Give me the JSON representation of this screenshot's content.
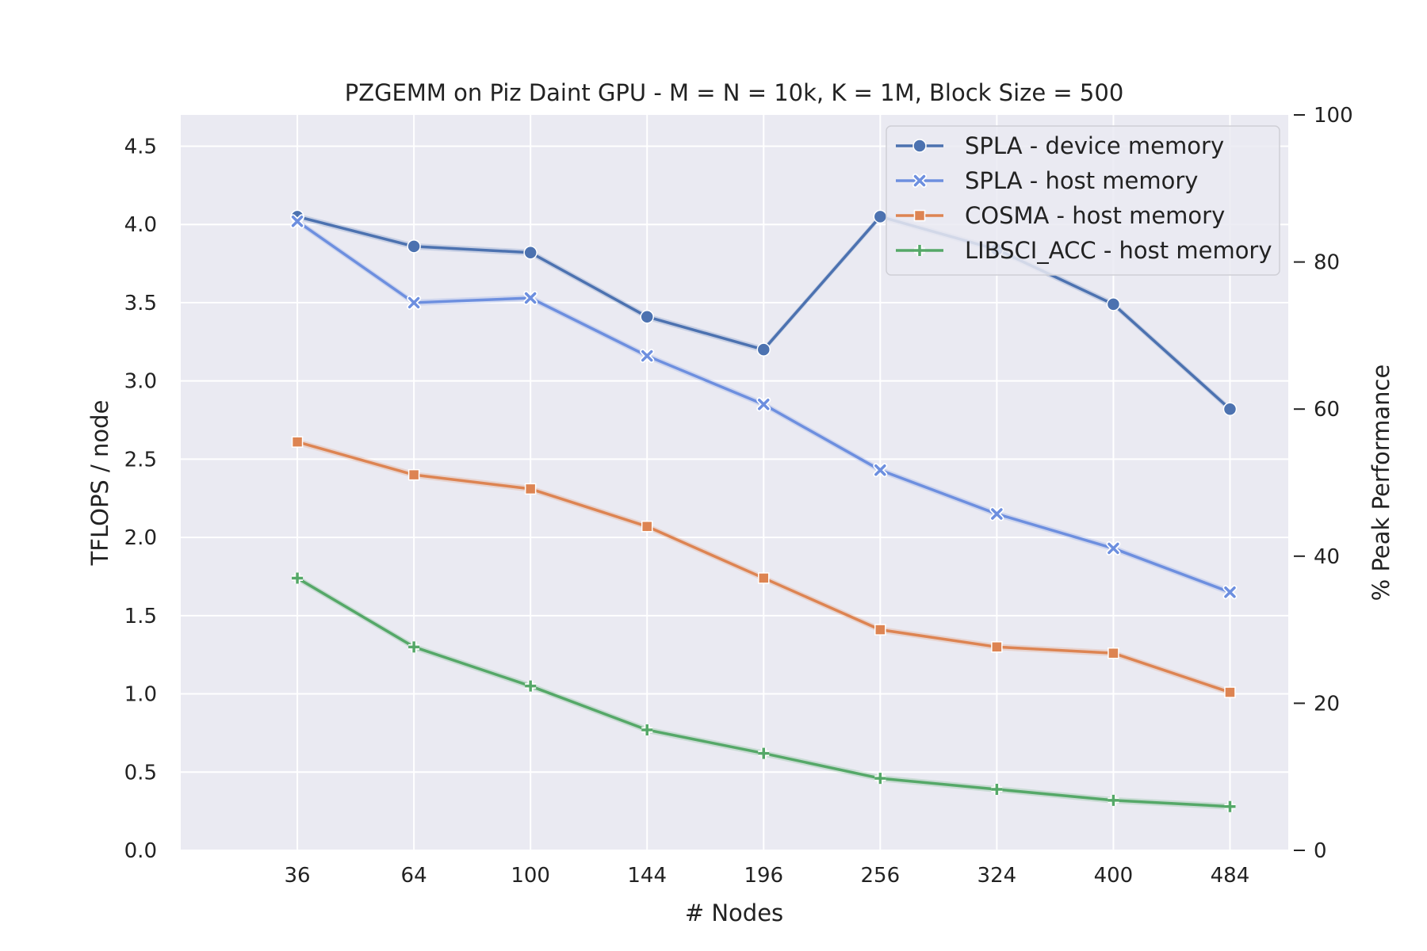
{
  "chart_data": {
    "type": "line",
    "title": "PZGEMM on Piz Daint GPU - M = N = 10k, K = 1M, Block Size = 500",
    "xlabel": "# Nodes",
    "ylabel": "TFLOPS / node",
    "y2label": "% Peak Performance",
    "x": [
      36,
      64,
      100,
      144,
      196,
      256,
      324,
      400,
      484
    ],
    "x_tick_labels": [
      "36",
      "64",
      "100",
      "144",
      "196",
      "256",
      "324",
      "400",
      "484"
    ],
    "x_scale": "sqrt",
    "xlim": [
      16,
      529
    ],
    "ylim": [
      0,
      4.7
    ],
    "y_ticks": [
      0.0,
      0.5,
      1.0,
      1.5,
      2.0,
      2.5,
      3.0,
      3.5,
      4.0,
      4.5
    ],
    "y_tick_labels": [
      "0.0",
      "0.5",
      "1.0",
      "1.5",
      "2.0",
      "2.5",
      "3.0",
      "3.5",
      "4.0",
      "4.5"
    ],
    "y2lim": [
      0,
      100
    ],
    "y2_ticks": [
      0,
      20,
      40,
      60,
      80,
      100
    ],
    "y2_tick_labels": [
      "0",
      "20",
      "40",
      "60",
      "80",
      "100"
    ],
    "grid": true,
    "legend_position": "top-right",
    "background": "#eaeaf2",
    "series": [
      {
        "name": "SPLA - device memory",
        "color": "#4c72b0",
        "marker": "circle",
        "values": [
          4.05,
          3.86,
          3.82,
          3.41,
          3.2,
          4.05,
          3.84,
          3.49,
          2.82
        ]
      },
      {
        "name": "SPLA - host memory",
        "color": "#6d8fdf",
        "marker": "x",
        "values": [
          4.02,
          3.5,
          3.53,
          3.16,
          2.85,
          2.43,
          2.15,
          1.93,
          1.65
        ]
      },
      {
        "name": "COSMA - host memory",
        "color": "#dd8452",
        "marker": "square",
        "values": [
          2.61,
          2.4,
          2.31,
          2.07,
          1.74,
          1.41,
          1.3,
          1.26,
          1.01
        ]
      },
      {
        "name": "LIBSCI_ACC - host memory",
        "color": "#55a868",
        "marker": "plus",
        "values": [
          1.74,
          1.3,
          1.05,
          0.77,
          0.62,
          0.46,
          0.39,
          0.32,
          0.28
        ]
      }
    ]
  }
}
